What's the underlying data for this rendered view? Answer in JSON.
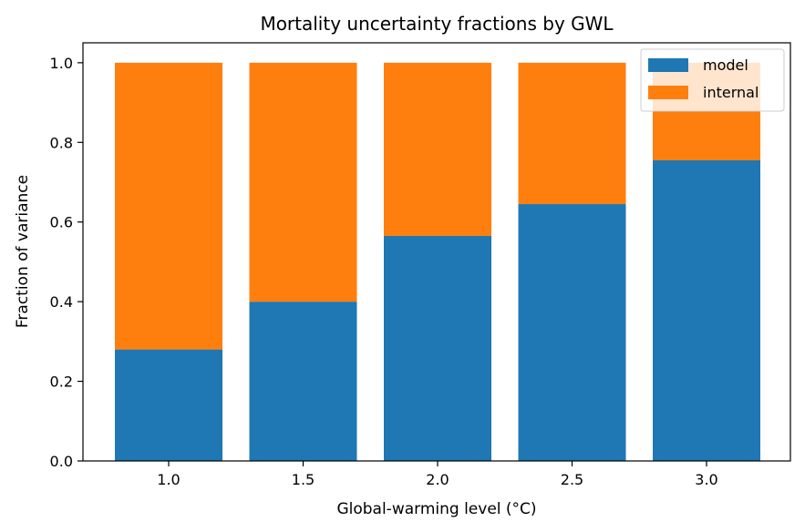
{
  "chart_data": {
    "type": "bar",
    "stacked": true,
    "title": "Mortality uncertainty fractions by GWL",
    "xlabel": "Global-warming level (°C)",
    "ylabel": "Fraction of variance",
    "categories": [
      "1.0",
      "1.5",
      "2.0",
      "2.5",
      "3.0"
    ],
    "series": [
      {
        "name": "model",
        "color": "#1f77b4",
        "values": [
          0.28,
          0.4,
          0.565,
          0.645,
          0.755
        ]
      },
      {
        "name": "internal",
        "color": "#ff7f0e",
        "values": [
          0.72,
          0.6,
          0.435,
          0.355,
          0.245
        ]
      }
    ],
    "ylim": [
      0,
      1.05
    ],
    "yticks": [
      "0.0",
      "0.2",
      "0.4",
      "0.6",
      "0.8",
      "1.0"
    ],
    "grid": false,
    "legend_position": "top-right"
  }
}
